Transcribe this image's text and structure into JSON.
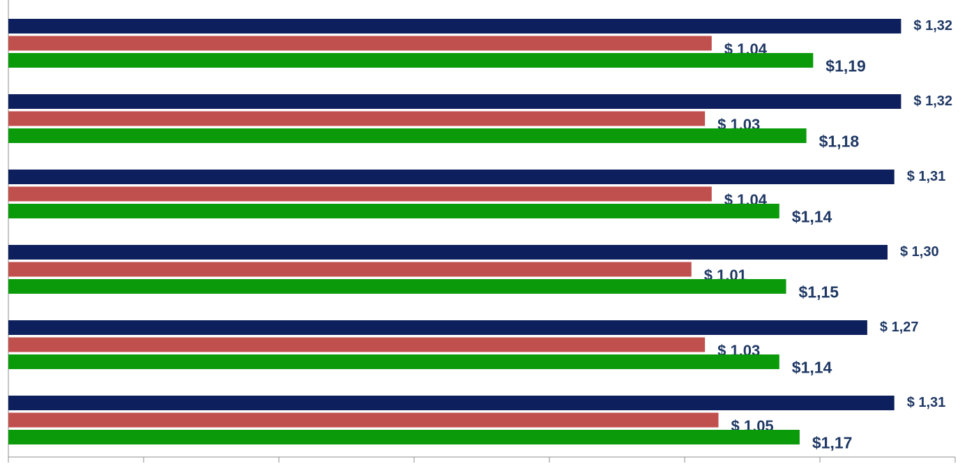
{
  "chart_data": {
    "type": "bar",
    "orientation": "horizontal",
    "categories": [
      "",
      "",
      "",
      "",
      "",
      ""
    ],
    "series": [
      {
        "color": "#0d1f5c",
        "values": [
          1.32,
          1.32,
          1.31,
          1.3,
          1.27,
          1.31
        ],
        "labels": [
          "$ 1,32",
          "$ 1,32",
          "$ 1,31",
          "$ 1,30",
          "$ 1,27",
          "$ 1,31"
        ]
      },
      {
        "color": "#c0504d",
        "values": [
          1.04,
          1.03,
          1.04,
          1.01,
          1.03,
          1.05
        ],
        "labels": [
          "$ 1,04",
          "$ 1,03",
          "$ 1,04",
          "$ 1,01",
          "$ 1,03",
          "$ 1,05"
        ]
      },
      {
        "color": "#0a9a0a",
        "values": [
          1.19,
          1.18,
          1.14,
          1.15,
          1.14,
          1.17
        ],
        "labels": [
          "$1,19",
          "$1,18",
          "$1,14",
          "$1,15",
          "$1,14",
          "$1,17"
        ]
      }
    ],
    "xlim": [
      0,
      1.4
    ],
    "x_ticks": 7,
    "grid": false,
    "legend": "none",
    "title": "",
    "xlabel": "",
    "ylabel": ""
  }
}
